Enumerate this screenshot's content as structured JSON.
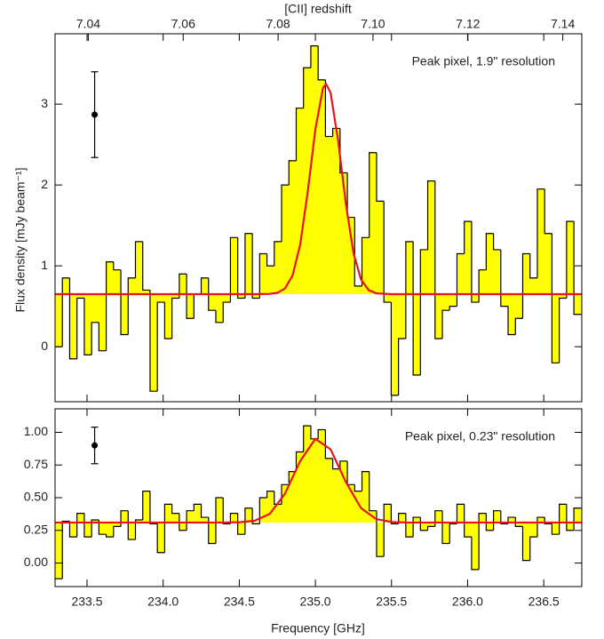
{
  "chart_data": [
    {
      "type": "histogram",
      "x2label": "[CII] redshift",
      "ylabel": "Flux density [mJy beam⁻¹]",
      "annotation": "Peak pixel, 1.9\" resolution",
      "xlim": [
        233.29,
        236.75
      ],
      "ylim": [
        -0.68,
        3.87
      ],
      "yticks": [
        0,
        1,
        2,
        3
      ],
      "x2lim": [
        7.033,
        7.144
      ],
      "x2ticks": [
        7.04,
        7.06,
        7.08,
        {
          "value": 7.1,
          "label": "7.10"
        },
        7.12,
        7.14
      ],
      "color": "#ffff00",
      "edgecolor": "#000000",
      "bins": [
        233.29,
        233.338,
        233.386,
        233.434,
        233.482,
        233.53,
        233.578,
        233.626,
        233.674,
        233.722,
        233.77,
        233.818,
        233.866,
        233.914,
        233.962,
        234.01,
        234.058,
        234.106,
        234.154,
        234.202,
        234.25,
        234.298,
        234.346,
        234.394,
        234.442,
        234.49,
        234.538,
        234.586,
        234.634,
        234.682,
        234.73,
        234.778,
        234.826,
        234.874,
        234.922,
        234.97,
        235.018,
        235.066,
        235.114,
        235.162,
        235.21,
        235.258,
        235.306,
        235.354,
        235.402,
        235.45,
        235.498,
        235.546,
        235.594,
        235.642,
        235.69,
        235.738,
        235.786,
        235.834,
        235.882,
        235.93,
        235.978,
        236.026,
        236.074,
        236.122,
        236.17,
        236.218,
        236.266,
        236.314,
        236.362,
        236.41,
        236.458,
        236.506,
        236.554,
        236.602,
        236.65,
        236.698,
        236.746
      ],
      "values": [
        0.0,
        0.85,
        -0.15,
        0.6,
        -0.1,
        0.3,
        -0.05,
        1.05,
        0.95,
        0.15,
        0.85,
        1.3,
        0.7,
        -0.55,
        0.55,
        0.1,
        0.6,
        0.9,
        0.35,
        0.65,
        0.85,
        0.45,
        0.3,
        0.55,
        1.35,
        0.6,
        1.4,
        0.6,
        1.15,
        1.0,
        1.3,
        2.0,
        2.3,
        2.95,
        3.45,
        3.72,
        3.3,
        2.6,
        2.7,
        2.15,
        1.6,
        0.75,
        1.35,
        2.4,
        1.8,
        0.55,
        -0.6,
        0.1,
        1.3,
        -0.35,
        1.2,
        2.05,
        0.1,
        0.45,
        0.5,
        1.15,
        1.55,
        0.55,
        0.95,
        1.4,
        1.2,
        0.5,
        0.15,
        0.35,
        1.15,
        0.85,
        1.95,
        1.4,
        -0.2,
        0.6,
        1.55,
        0.4
      ],
      "fit": {
        "color": "#e8141c",
        "x": [
          233.29,
          234.6,
          234.7,
          234.75,
          234.8,
          234.85,
          234.9,
          234.95,
          235.0,
          235.05,
          235.07,
          235.1,
          235.15,
          235.2,
          235.25,
          235.3,
          235.35,
          235.4,
          235.5,
          236.75
        ],
        "values": [
          0.65,
          0.65,
          0.653,
          0.665,
          0.72,
          0.88,
          1.26,
          1.92,
          2.69,
          3.2,
          3.25,
          3.14,
          2.54,
          1.77,
          1.16,
          0.83,
          0.7,
          0.66,
          0.65,
          0.65
        ]
      },
      "errorbar": {
        "x": 233.55,
        "value": 2.87,
        "error": 0.53
      }
    },
    {
      "type": "histogram",
      "xlabel": "Frequency [GHz]",
      "annotation": "Peak pixel, 0.23\" resolution",
      "xlim": [
        233.29,
        236.75
      ],
      "ylim": [
        -0.18,
        1.18
      ],
      "yticks": [
        {
          "value": 0,
          "label": "0.00"
        },
        0.25,
        {
          "value": 0.5,
          "label": "0.50"
        },
        0.75,
        {
          "value": 1,
          "label": "1.00"
        }
      ],
      "xticks": [
        233.5,
        {
          "value": 234,
          "label": "234.0"
        },
        234.5,
        {
          "value": 235,
          "label": "235.0"
        },
        235.5,
        {
          "value": 236,
          "label": "236.0"
        },
        236.5
      ],
      "color": "#ffff00",
      "edgecolor": "#000000",
      "bins": [
        233.29,
        233.338,
        233.386,
        233.434,
        233.482,
        233.53,
        233.578,
        233.626,
        233.674,
        233.722,
        233.77,
        233.818,
        233.866,
        233.914,
        233.962,
        234.01,
        234.058,
        234.106,
        234.154,
        234.202,
        234.25,
        234.298,
        234.346,
        234.394,
        234.442,
        234.49,
        234.538,
        234.586,
        234.634,
        234.682,
        234.73,
        234.778,
        234.826,
        234.874,
        234.922,
        234.97,
        235.018,
        235.066,
        235.114,
        235.162,
        235.21,
        235.258,
        235.306,
        235.354,
        235.402,
        235.45,
        235.498,
        235.546,
        235.594,
        235.642,
        235.69,
        235.738,
        235.786,
        235.834,
        235.882,
        235.93,
        235.978,
        236.026,
        236.074,
        236.122,
        236.17,
        236.218,
        236.266,
        236.314,
        236.362,
        236.41,
        236.458,
        236.506,
        236.554,
        236.602,
        236.65,
        236.698,
        236.746
      ],
      "values": [
        -0.12,
        0.32,
        0.2,
        0.38,
        0.2,
        0.33,
        0.22,
        0.2,
        0.28,
        0.4,
        0.18,
        0.33,
        0.55,
        0.3,
        0.08,
        0.45,
        0.38,
        0.25,
        0.4,
        0.45,
        0.35,
        0.15,
        0.5,
        0.3,
        0.38,
        0.22,
        0.42,
        0.3,
        0.5,
        0.55,
        0.45,
        0.6,
        0.7,
        0.85,
        1.05,
        0.95,
        1.02,
        0.8,
        0.72,
        0.78,
        0.6,
        0.55,
        0.7,
        0.4,
        0.05,
        0.45,
        0.3,
        0.38,
        0.2,
        0.35,
        0.25,
        0.28,
        0.4,
        0.15,
        0.3,
        0.45,
        0.2,
        -0.05,
        0.38,
        0.25,
        0.4,
        0.3,
        0.35,
        0.28,
        0.02,
        0.2,
        0.35,
        0.3,
        0.22,
        0.45,
        0.25,
        0.42
      ],
      "fit": {
        "color": "#e8141c",
        "x": [
          233.29,
          234.3,
          234.4,
          234.5,
          234.6,
          234.7,
          234.8,
          234.9,
          235.0,
          235.1,
          235.2,
          235.3,
          235.4,
          235.5,
          235.6,
          236.75
        ],
        "values": [
          0.31,
          0.31,
          0.31,
          0.312,
          0.323,
          0.376,
          0.53,
          0.78,
          0.95,
          0.87,
          0.62,
          0.42,
          0.336,
          0.314,
          0.31,
          0.31
        ]
      },
      "errorbar": {
        "x": 233.55,
        "value": 0.9,
        "error": 0.14
      }
    }
  ]
}
